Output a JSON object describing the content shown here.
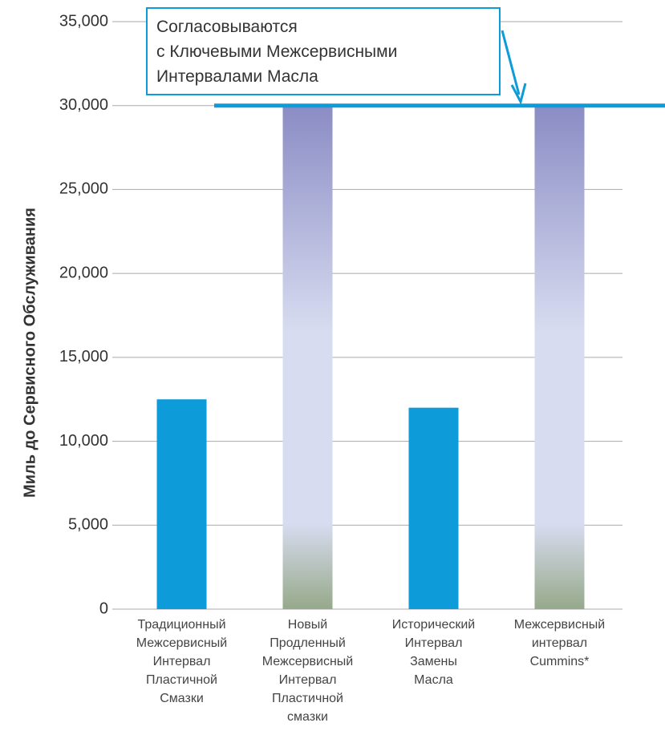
{
  "chart_data": {
    "type": "bar",
    "ylabel": "Миль до Сервисного Обслуживания",
    "categories": [
      [
        "Традиционный",
        "Межсервисный",
        "Интервал",
        "Пластичной",
        "Смазки"
      ],
      [
        "Новый",
        "Продленный",
        "Межсервисный",
        "Интервал",
        "Пластичной",
        "смазки"
      ],
      [
        "Исторический",
        "Интервал",
        "Замены",
        "Масла"
      ],
      [
        "Межсервисный",
        "интервал",
        "Cummins*"
      ]
    ],
    "values": [
      12500,
      30000,
      12000,
      30000
    ],
    "colors": [
      "#0e9bd9",
      [
        "#8a8cc4",
        "#d8dcf0",
        "#d8dcf0",
        "#96a98a"
      ],
      "#0e9bd9",
      [
        "#8a8cc4",
        "#d8dcf0",
        "#d8dcf0",
        "#96a98a"
      ]
    ],
    "ylim": [
      0,
      35000
    ],
    "yticks": [
      0,
      {
        "value": 5000,
        "label": "5,000"
      },
      {
        "value": 10000,
        "label": "10,000"
      },
      {
        "value": 15000,
        "label": "15,000"
      },
      {
        "value": 20000,
        "label": "20,000"
      },
      {
        "value": 25000,
        "label": "25,000"
      },
      {
        "value": 30000,
        "label": "30,000"
      },
      {
        "value": 35000,
        "label": "35,000"
      }
    ],
    "grid": true,
    "reference_line": {
      "value": 30000,
      "color": "#0e9bd9"
    },
    "annotation": {
      "text": [
        "Согласовываются",
        "с Ключевыми Межсервисными",
        "Интервалами Масла"
      ],
      "color": "#0e9bd9"
    }
  }
}
